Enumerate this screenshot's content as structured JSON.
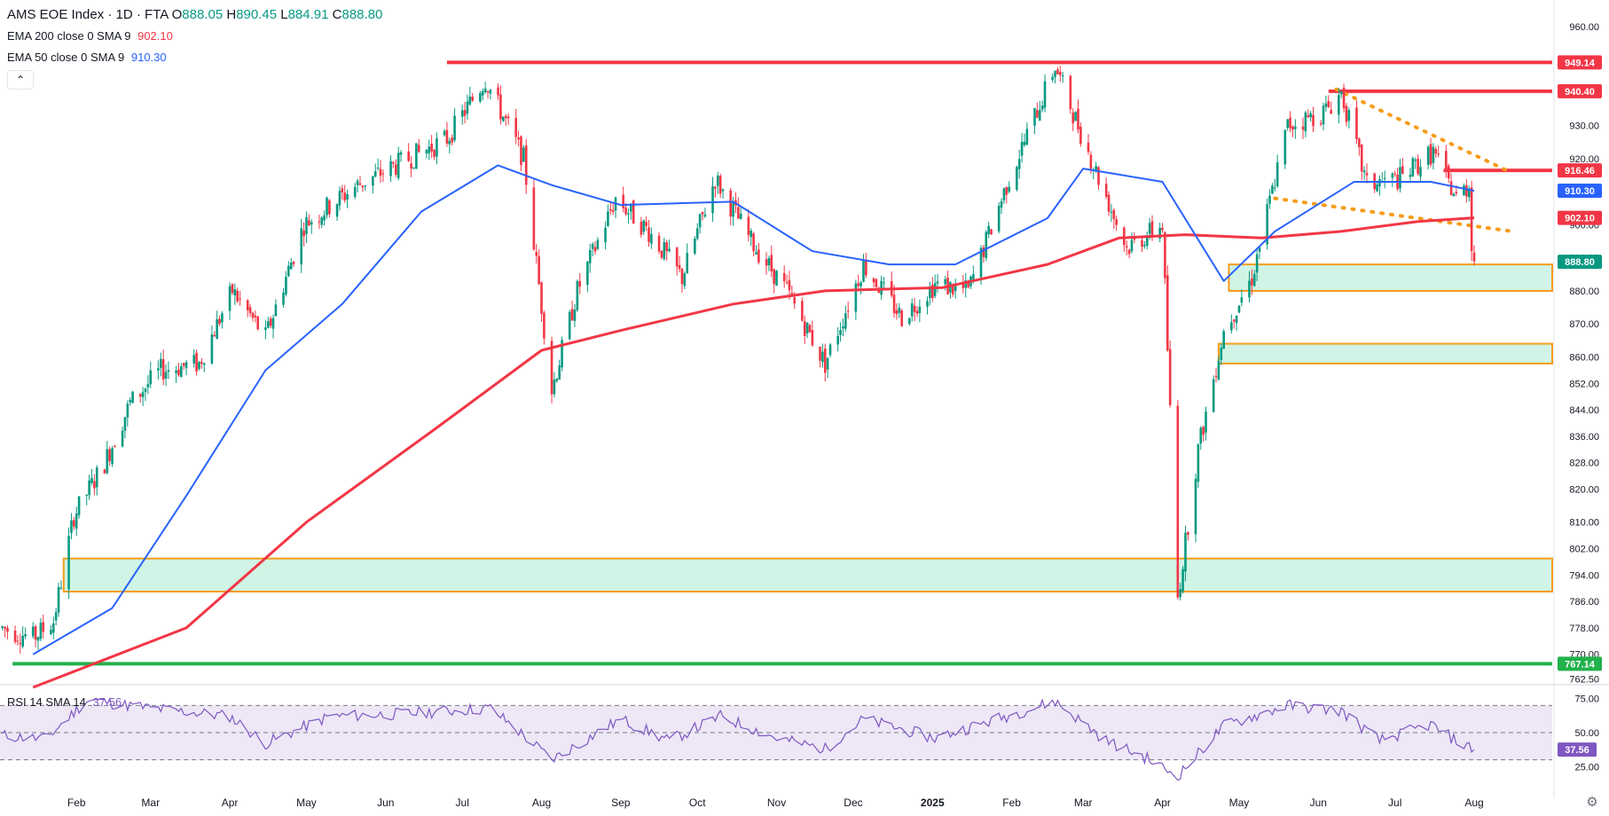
{
  "header": {
    "symbol": "AMS EOE Index · 1D · FTA",
    "open_label": "O",
    "open": "888.05",
    "high_label": "H",
    "high": "890.45",
    "low_label": "L",
    "low": "884.91",
    "close_label": "C",
    "close": "888.80",
    "ema200_label": "EMA 200 close 0 SMA 9",
    "ema200_value": "902.10",
    "ema50_label": "EMA 50 close 0 SMA 9",
    "ema50_value": "910.30",
    "collapse_icon": "chevron-up-icon"
  },
  "rsi_legend": {
    "label": "RSI 14 SMA 14",
    "value": "37.56"
  },
  "colors": {
    "up": "#089981",
    "down": "#f23645",
    "ema200": "#f23645",
    "ema50": "#2962ff",
    "hline": "#f23645",
    "support": "#22b14c",
    "zone_fill": "#c8f2e0",
    "zone_border": "#f59c1a",
    "trend": "#f59c1a",
    "rsi": "#7e57c2",
    "rsi_band": "#ede7f6"
  },
  "chart_data": {
    "type": "candlestick",
    "title": "AMS EOE Index · 1D · FTA",
    "x_tick_labels": [
      "Feb",
      "Mar",
      "Apr",
      "May",
      "Jun",
      "Jul",
      "Aug",
      "Sep",
      "Oct",
      "Nov",
      "Dec",
      "2025",
      "Feb",
      "Mar",
      "Apr",
      "May",
      "Jun",
      "Jul",
      "Aug"
    ],
    "price_axis_ticks": [
      "960.00",
      "940.00",
      "930.00",
      "920.00",
      "900.00",
      "890.00",
      "880.00",
      "870.00",
      "860.00",
      "852.00",
      "844.00",
      "836.00",
      "828.00",
      "820.00",
      "810.00",
      "802.00",
      "794.00",
      "786.00",
      "778.00",
      "770.00",
      "762.50"
    ],
    "ylim": [
      760,
      964
    ],
    "price_path": [
      {
        "date": "2024-01-03",
        "price": 778
      },
      {
        "date": "2024-01-15",
        "price": 775
      },
      {
        "date": "2024-01-23",
        "price": 780
      },
      {
        "date": "2024-01-31",
        "price": 812
      },
      {
        "date": "2024-02-12",
        "price": 828
      },
      {
        "date": "2024-02-22",
        "price": 846
      },
      {
        "date": "2024-03-05",
        "price": 856
      },
      {
        "date": "2024-03-20",
        "price": 858
      },
      {
        "date": "2024-04-02",
        "price": 880
      },
      {
        "date": "2024-04-15",
        "price": 866
      },
      {
        "date": "2024-04-30",
        "price": 900
      },
      {
        "date": "2024-05-21",
        "price": 912
      },
      {
        "date": "2024-06-10",
        "price": 920
      },
      {
        "date": "2024-06-25",
        "price": 926
      },
      {
        "date": "2024-07-10",
        "price": 944
      },
      {
        "date": "2024-07-25",
        "price": 920
      },
      {
        "date": "2024-08-05",
        "price": 850
      },
      {
        "date": "2024-08-15",
        "price": 880
      },
      {
        "date": "2024-08-30",
        "price": 908
      },
      {
        "date": "2024-09-12",
        "price": 898
      },
      {
        "date": "2024-09-25",
        "price": 884
      },
      {
        "date": "2024-10-08",
        "price": 914
      },
      {
        "date": "2024-10-22",
        "price": 895
      },
      {
        "date": "2024-11-05",
        "price": 880
      },
      {
        "date": "2024-11-20",
        "price": 858
      },
      {
        "date": "2024-12-05",
        "price": 888
      },
      {
        "date": "2024-12-20",
        "price": 872
      },
      {
        "date": "2025-01-02",
        "price": 882
      },
      {
        "date": "2025-01-15",
        "price": 880
      },
      {
        "date": "2025-01-30",
        "price": 912
      },
      {
        "date": "2025-02-18",
        "price": 948
      },
      {
        "date": "2025-03-03",
        "price": 922
      },
      {
        "date": "2025-03-18",
        "price": 893
      },
      {
        "date": "2025-04-01",
        "price": 900
      },
      {
        "date": "2025-04-07",
        "price": 787
      },
      {
        "date": "2025-04-15",
        "price": 832
      },
      {
        "date": "2025-04-25",
        "price": 868
      },
      {
        "date": "2025-05-06",
        "price": 884
      },
      {
        "date": "2025-05-20",
        "price": 930
      },
      {
        "date": "2025-06-03",
        "price": 934
      },
      {
        "date": "2025-06-10",
        "price": 940
      },
      {
        "date": "2025-06-20",
        "price": 912
      },
      {
        "date": "2025-07-03",
        "price": 914
      },
      {
        "date": "2025-07-16",
        "price": 922
      },
      {
        "date": "2025-07-25",
        "price": 908
      },
      {
        "date": "2025-07-30",
        "price": 912
      },
      {
        "date": "2025-07-31",
        "price": 895
      },
      {
        "date": "2025-08-01",
        "price": 888.8
      }
    ],
    "ema200_path": [
      {
        "date": "2024-01-15",
        "value": 760
      },
      {
        "date": "2024-03-15",
        "value": 778
      },
      {
        "date": "2024-05-01",
        "value": 810
      },
      {
        "date": "2024-06-20",
        "value": 838
      },
      {
        "date": "2024-08-01",
        "value": 862
      },
      {
        "date": "2024-09-01",
        "value": 868
      },
      {
        "date": "2024-10-15",
        "value": 876
      },
      {
        "date": "2024-11-20",
        "value": 880
      },
      {
        "date": "2025-01-05",
        "value": 881
      },
      {
        "date": "2025-02-15",
        "value": 888
      },
      {
        "date": "2025-03-15",
        "value": 896
      },
      {
        "date": "2025-04-10",
        "value": 897
      },
      {
        "date": "2025-05-10",
        "value": 896
      },
      {
        "date": "2025-06-10",
        "value": 898
      },
      {
        "date": "2025-07-10",
        "value": 901
      },
      {
        "date": "2025-08-01",
        "value": 902.1
      }
    ],
    "ema50_path": [
      {
        "date": "2024-01-15",
        "value": 770
      },
      {
        "date": "2024-02-15",
        "value": 784
      },
      {
        "date": "2024-03-15",
        "value": 818
      },
      {
        "date": "2024-04-15",
        "value": 856
      },
      {
        "date": "2024-05-15",
        "value": 876
      },
      {
        "date": "2024-06-15",
        "value": 904
      },
      {
        "date": "2024-07-15",
        "value": 918
      },
      {
        "date": "2024-08-05",
        "value": 912
      },
      {
        "date": "2024-09-01",
        "value": 906
      },
      {
        "date": "2024-10-15",
        "value": 907
      },
      {
        "date": "2024-11-15",
        "value": 892
      },
      {
        "date": "2024-12-15",
        "value": 888
      },
      {
        "date": "2025-01-10",
        "value": 888
      },
      {
        "date": "2025-02-15",
        "value": 902
      },
      {
        "date": "2025-03-01",
        "value": 917
      },
      {
        "date": "2025-04-01",
        "value": 913
      },
      {
        "date": "2025-04-25",
        "value": 883
      },
      {
        "date": "2025-05-15",
        "value": 898
      },
      {
        "date": "2025-06-15",
        "value": 913
      },
      {
        "date": "2025-07-15",
        "value": 913
      },
      {
        "date": "2025-08-01",
        "value": 910.3
      }
    ],
    "horizontal_levels": [
      {
        "price": 949.14,
        "label": "949.14",
        "from_date": "2024-06-25",
        "kind": "resistance"
      },
      {
        "price": 940.4,
        "label": "940.40",
        "from_date": "2025-06-05",
        "kind": "resistance"
      },
      {
        "price": 916.46,
        "label": "916.46",
        "from_date": "2025-07-20",
        "kind": "resistance"
      },
      {
        "price": 767.14,
        "label": "767.14",
        "from_date": "2024-01-07",
        "kind": "support"
      }
    ],
    "zones": [
      {
        "low": 880,
        "high": 888,
        "from_date": "2025-04-27",
        "to_date": "2025-09-01"
      },
      {
        "low": 858,
        "high": 864,
        "from_date": "2025-04-23",
        "to_date": "2025-09-05"
      },
      {
        "low": 789,
        "high": 799,
        "from_date": "2024-01-27",
        "to_date": "2025-10-01"
      }
    ],
    "trendlines": [
      {
        "from": {
          "date": "2025-06-08",
          "price": 941
        },
        "to": {
          "date": "2025-08-15",
          "price": 916
        }
      },
      {
        "from": {
          "date": "2025-05-15",
          "price": 908
        },
        "to": {
          "date": "2025-08-16",
          "price": 898
        }
      }
    ],
    "price_badges": [
      {
        "price": 949.14,
        "label": "949.14",
        "kind": "red"
      },
      {
        "price": 940.4,
        "label": "940.40",
        "kind": "red"
      },
      {
        "price": 916.46,
        "label": "916.46",
        "kind": "red"
      },
      {
        "price": 910.3,
        "label": "910.30",
        "kind": "blue"
      },
      {
        "price": 902.1,
        "label": "902.10",
        "kind": "red"
      },
      {
        "price": 888.8,
        "label": "888.80",
        "kind": "green"
      },
      {
        "price": 767.14,
        "label": "767.14",
        "kind": "green"
      }
    ],
    "rsi": {
      "ylim": [
        20,
        80
      ],
      "levels": [
        70,
        50,
        30
      ],
      "tick_labels": [
        "75.00",
        "50.00",
        "25.00"
      ],
      "current": 37.56,
      "path": [
        {
          "date": "2024-01-03",
          "value": 48
        },
        {
          "date": "2024-01-20",
          "value": 45
        },
        {
          "date": "2024-02-05",
          "value": 74
        },
        {
          "date": "2024-03-01",
          "value": 68
        },
        {
          "date": "2024-04-01",
          "value": 62
        },
        {
          "date": "2024-04-15",
          "value": 42
        },
        {
          "date": "2024-05-10",
          "value": 62
        },
        {
          "date": "2024-06-10",
          "value": 64
        },
        {
          "date": "2024-07-12",
          "value": 68
        },
        {
          "date": "2024-07-25",
          "value": 48
        },
        {
          "date": "2024-08-05",
          "value": 30
        },
        {
          "date": "2024-09-01",
          "value": 60
        },
        {
          "date": "2024-09-20",
          "value": 44
        },
        {
          "date": "2024-10-10",
          "value": 62
        },
        {
          "date": "2024-11-01",
          "value": 46
        },
        {
          "date": "2024-11-20",
          "value": 38
        },
        {
          "date": "2024-12-05",
          "value": 60
        },
        {
          "date": "2025-01-02",
          "value": 46
        },
        {
          "date": "2025-02-18",
          "value": 73
        },
        {
          "date": "2025-03-10",
          "value": 44
        },
        {
          "date": "2025-03-25",
          "value": 32
        },
        {
          "date": "2025-04-07",
          "value": 18
        },
        {
          "date": "2025-04-25",
          "value": 55
        },
        {
          "date": "2025-05-20",
          "value": 70
        },
        {
          "date": "2025-06-10",
          "value": 66
        },
        {
          "date": "2025-06-25",
          "value": 44
        },
        {
          "date": "2025-07-15",
          "value": 56
        },
        {
          "date": "2025-07-25",
          "value": 44
        },
        {
          "date": "2025-08-01",
          "value": 37.56
        }
      ]
    }
  }
}
